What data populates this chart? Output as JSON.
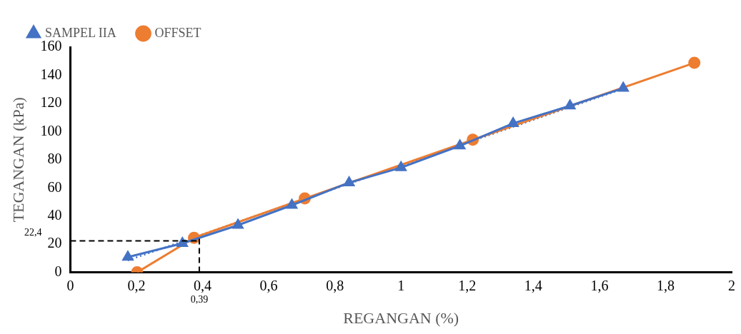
{
  "chart_data": {
    "type": "line",
    "xlabel": "REGANGAN (%)",
    "ylabel": "TEGANGAN (kPa)",
    "xlim": [
      0,
      2
    ],
    "xticks": [
      {
        "value": 0,
        "label": "0"
      },
      {
        "value": 0.2,
        "label": "0,2"
      },
      {
        "value": 0.4,
        "label": "0,4"
      },
      {
        "value": 0.6,
        "label": "0,6"
      },
      {
        "value": 0.8,
        "label": "0,8"
      },
      {
        "value": 1,
        "label": "1"
      },
      {
        "value": 1.2,
        "label": "1,2"
      },
      {
        "value": 1.4,
        "label": "1,4"
      },
      {
        "value": 1.6,
        "label": "1,6"
      },
      {
        "value": 1.8,
        "label": "1,8"
      },
      {
        "value": 2,
        "label": "2"
      }
    ],
    "ylim": [
      0,
      160
    ],
    "yticks": [
      0,
      20,
      40,
      60,
      80,
      100,
      120,
      140,
      160
    ],
    "grid": false,
    "legend": "top left",
    "series": [
      {
        "name": "SAMPEL IIA",
        "color": "#4472c4",
        "marker": "triangle",
        "line_style": "solid",
        "x": [
          0.174,
          0.339,
          0.507,
          0.67,
          0.843,
          1.0,
          1.178,
          1.339,
          1.511,
          1.672
        ],
        "values": [
          10.8,
          20.6,
          33.5,
          47.7,
          63.7,
          74.4,
          89.9,
          105.8,
          118.3,
          130.8
        ]
      },
      {
        "name": "OFFSET",
        "color": "#ed7d31",
        "marker": "circle",
        "line_style": "solid",
        "x": [
          0.202,
          0.374,
          0.709,
          1.217,
          1.887
        ],
        "values": [
          0,
          24.5,
          52.5,
          94.2,
          148.8
        ]
      },
      {
        "color": "#4472c4",
        "line_style": "dotted",
        "x": [
          0.174,
          1.672
        ],
        "values": [
          8.5,
          130.5
        ]
      },
      {
        "color": "#ed7d31",
        "line_style": "dotted",
        "x": [
          0.374,
          1.672
        ],
        "values": [
          25,
          131
        ]
      }
    ],
    "ref_lines": [
      {
        "axis": "y",
        "value": 22.4,
        "label": "22,4",
        "color": "#000000",
        "line_style": "dashed"
      },
      {
        "axis": "x",
        "value": 0.39,
        "label": "0,39",
        "color": "#000000",
        "line_style": "dashed"
      }
    ]
  }
}
